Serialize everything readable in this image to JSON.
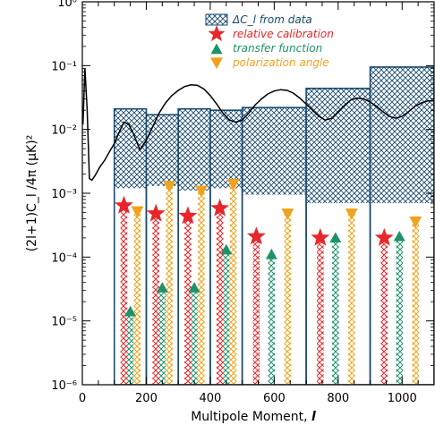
{
  "chart_data": {
    "type": "bar",
    "xlabel": "Multipole Moment, ",
    "xlabel_symbol": "l",
    "ylabel": "(2l+1)C_l /4π (μK)²",
    "x_ticks": [
      "0",
      "200",
      "400",
      "600",
      "800",
      "1000"
    ],
    "x_tick_values": [
      0,
      200,
      400,
      600,
      800,
      1000
    ],
    "y_ticks": [
      "10⁰",
      "10⁻¹",
      "10⁻²",
      "10⁻³",
      "10⁻⁴",
      "10⁻⁵",
      "10⁻⁶"
    ],
    "y_tick_values": [
      1,
      0.1,
      0.01,
      0.001,
      0.0001,
      1e-05,
      1e-06
    ],
    "xlim": [
      0,
      1100
    ],
    "ylim": [
      1e-06,
      1
    ],
    "yscale": "log",
    "legend": [
      {
        "label": "ΔC_l from data",
        "marker": "crosshatch-box",
        "color": "#1a4a6e"
      },
      {
        "label": "relative calibration",
        "marker": "star",
        "color": "#e8262a"
      },
      {
        "label": "transfer function",
        "marker": "triangle-up",
        "color": "#1e9367"
      },
      {
        "label": "polarization angle",
        "marker": "triangle-down",
        "color": "#f0a21d"
      }
    ],
    "legend_position": "top-right",
    "bins": [
      {
        "xmin": 100,
        "xmax": 200,
        "data_low": 0.0012,
        "data_high": 0.021,
        "relative_calibration": 0.00064,
        "transfer_function": 1.4e-05,
        "polarization_angle": 0.00052
      },
      {
        "xmin": 200,
        "xmax": 300,
        "data_low": 0.0013,
        "data_high": 0.017,
        "relative_calibration": 0.00048,
        "transfer_function": 3.3e-05,
        "polarization_angle": 0.0013
      },
      {
        "xmin": 300,
        "xmax": 400,
        "data_low": 0.0011,
        "data_high": 0.021,
        "relative_calibration": 0.00044,
        "transfer_function": 3.3e-05,
        "polarization_angle": 0.0011
      },
      {
        "xmin": 400,
        "xmax": 500,
        "data_low": 0.0012,
        "data_high": 0.02,
        "relative_calibration": 0.00058,
        "transfer_function": 0.00013,
        "polarization_angle": 0.0014
      },
      {
        "xmin": 500,
        "xmax": 700,
        "data_low": 0.00095,
        "data_high": 0.022,
        "relative_calibration": 0.00021,
        "transfer_function": 0.00011,
        "polarization_angle": 0.00048
      },
      {
        "xmin": 700,
        "xmax": 900,
        "data_low": 0.0007,
        "data_high": 0.044,
        "relative_calibration": 0.0002,
        "transfer_function": 0.0002,
        "polarization_angle": 0.00048
      },
      {
        "xmin": 900,
        "xmax": 1100,
        "data_low": 0.0007,
        "data_high": 0.095,
        "relative_calibration": 0.0002,
        "transfer_function": 0.00021,
        "polarization_angle": 0.00036
      }
    ],
    "theory_curve": {
      "x": [
        2,
        8,
        15,
        22,
        30,
        40,
        55,
        70,
        85,
        100,
        115,
        130,
        145,
        160,
        180,
        200,
        220,
        240,
        260,
        280,
        300,
        320,
        340,
        360,
        380,
        400,
        420,
        440,
        460,
        480,
        500,
        520,
        540,
        560,
        580,
        600,
        620,
        640,
        660,
        680,
        700,
        720,
        740,
        760,
        780,
        800,
        820,
        840,
        860,
        880,
        900,
        920,
        940,
        960,
        980,
        1000,
        1020,
        1040,
        1060,
        1080,
        1100
      ],
      "y": [
        0.012,
        0.09,
        0.02,
        0.0017,
        0.0016,
        0.0019,
        0.0026,
        0.0033,
        0.0045,
        0.006,
        0.009,
        0.013,
        0.012,
        0.0085,
        0.0048,
        0.0068,
        0.011,
        0.018,
        0.026,
        0.034,
        0.041,
        0.047,
        0.05,
        0.049,
        0.043,
        0.034,
        0.025,
        0.018,
        0.014,
        0.013,
        0.014,
        0.018,
        0.024,
        0.03,
        0.036,
        0.04,
        0.042,
        0.041,
        0.037,
        0.031,
        0.025,
        0.02,
        0.016,
        0.014,
        0.015,
        0.019,
        0.024,
        0.029,
        0.031,
        0.03,
        0.027,
        0.023,
        0.019,
        0.016,
        0.015,
        0.016,
        0.019,
        0.023,
        0.026,
        0.028,
        0.028
      ]
    }
  }
}
